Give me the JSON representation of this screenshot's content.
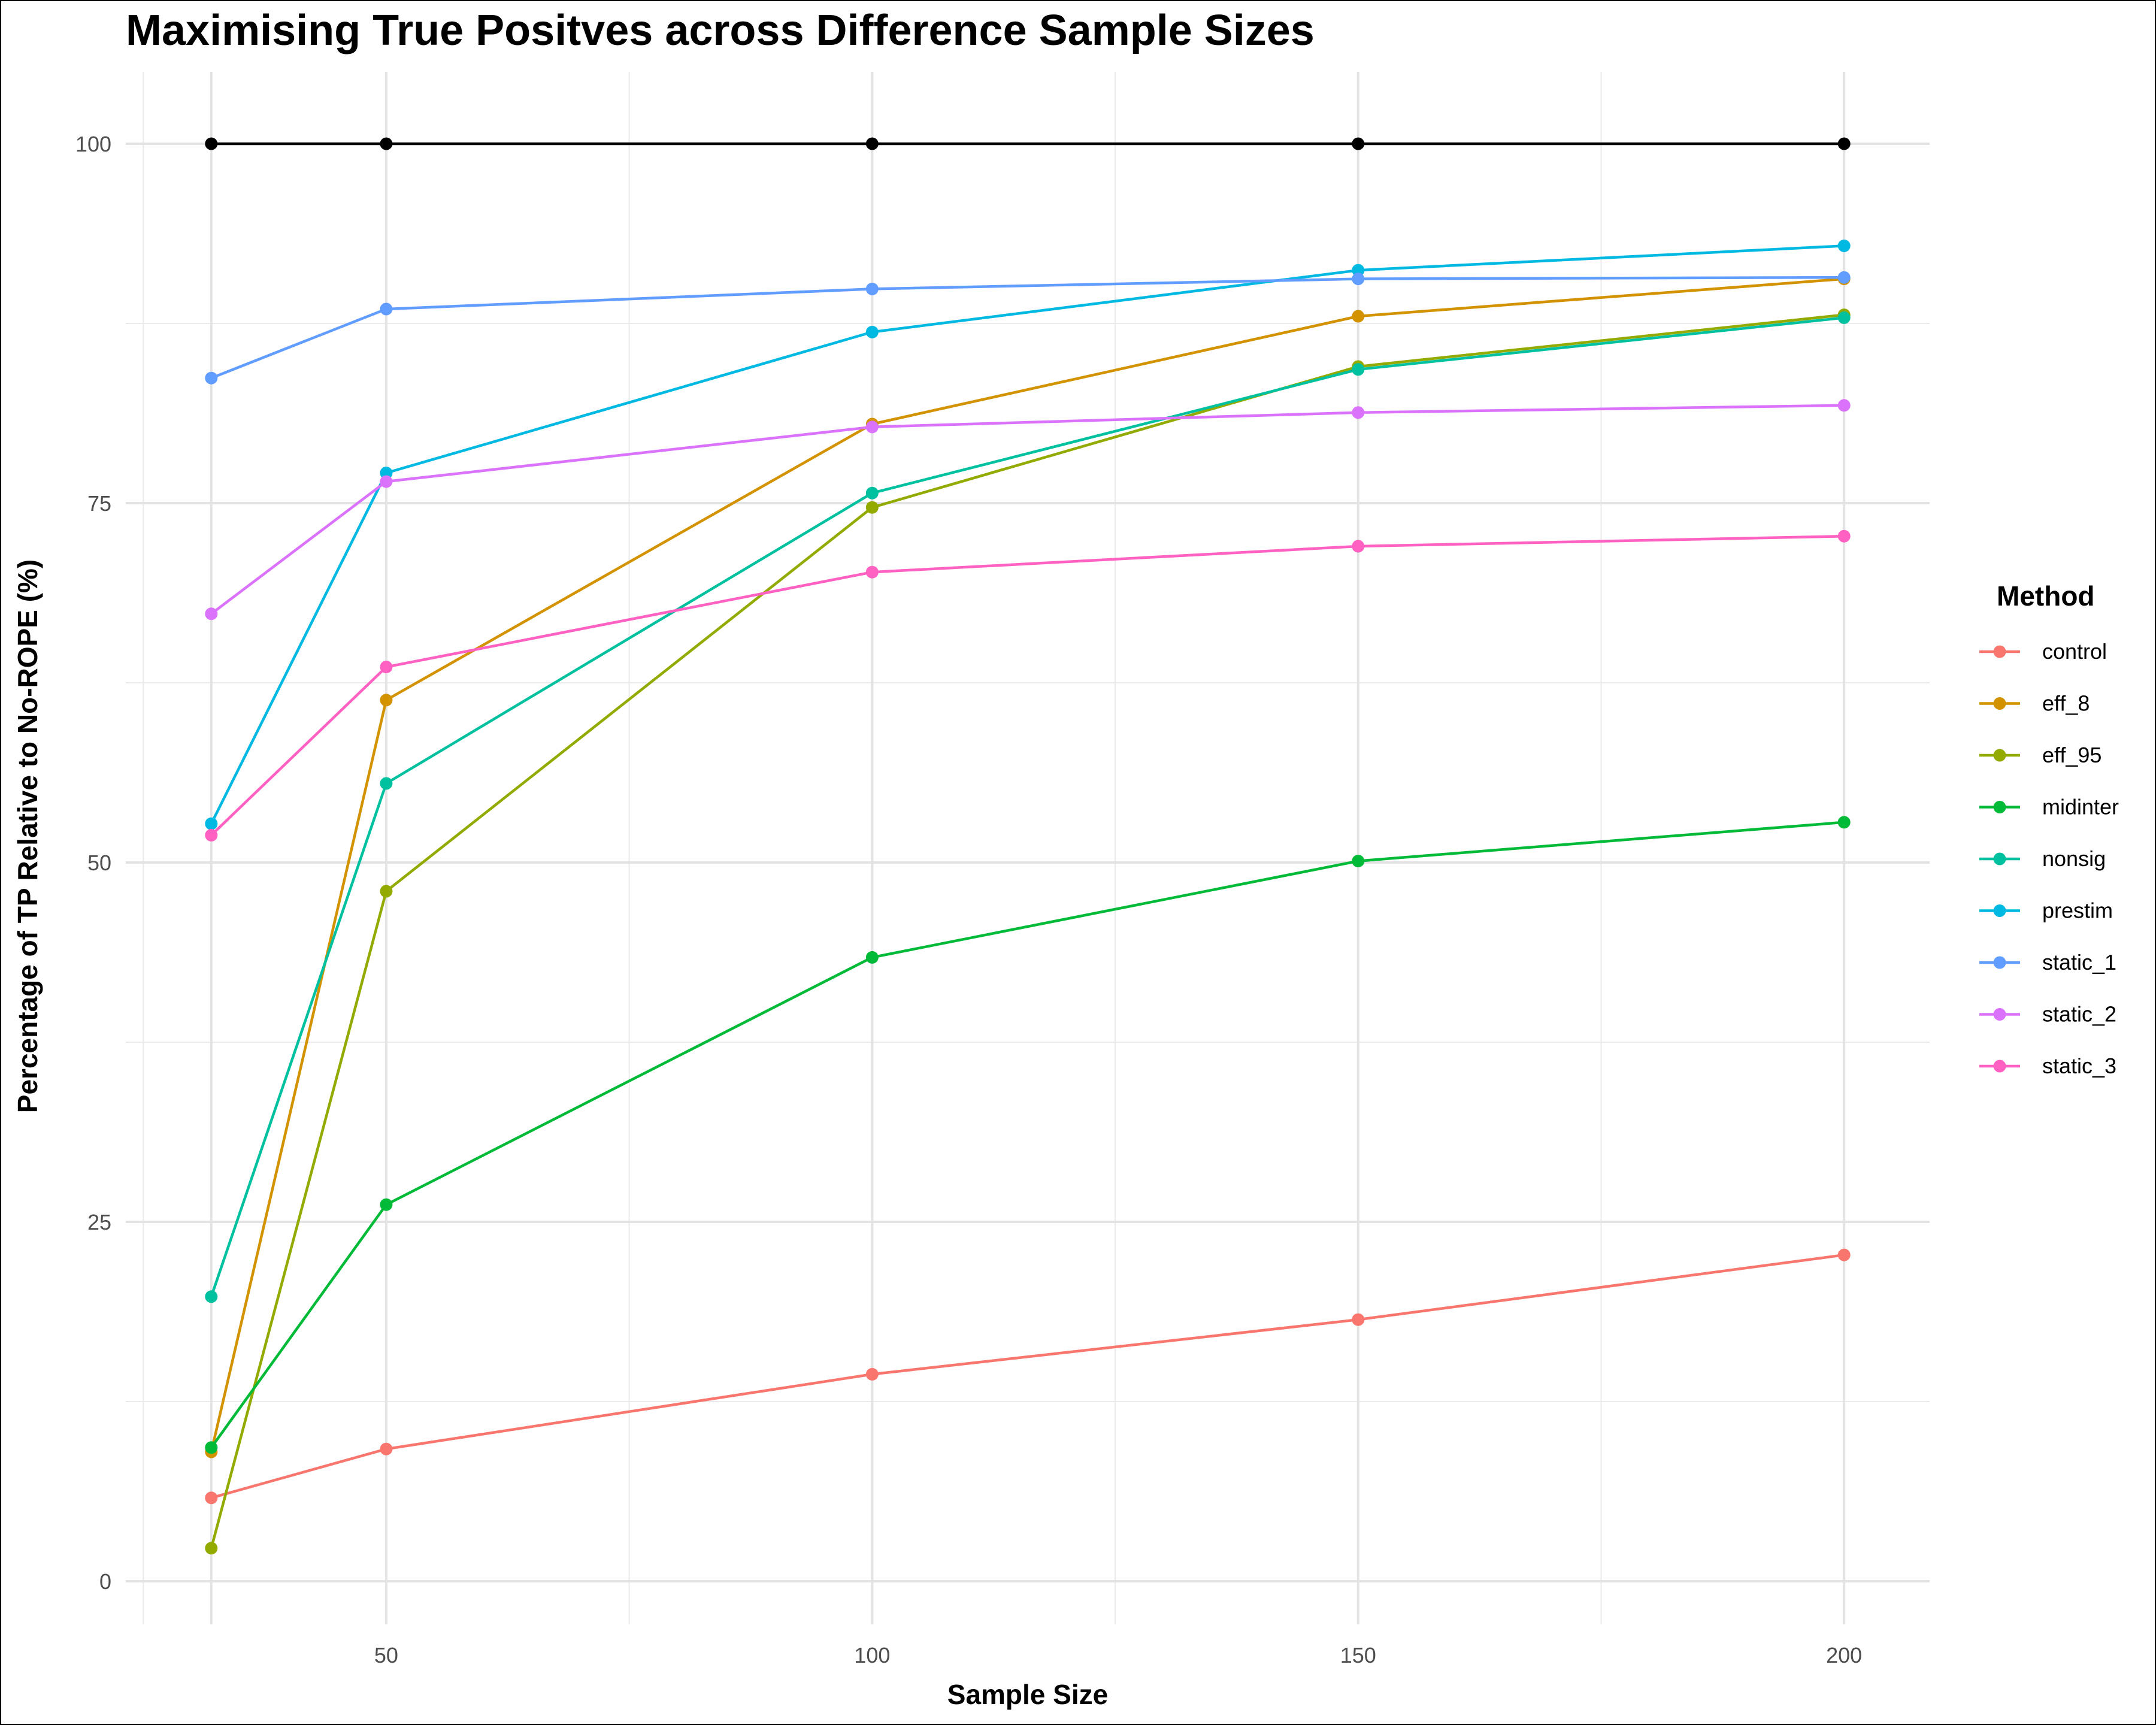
{
  "chart_data": {
    "type": "line",
    "title": "Maximising True Positves across Difference Sample Sizes",
    "xlabel": "Sample Size",
    "ylabel": "Percentage of TP Relative to No-ROPE (%)",
    "x": [
      32,
      50,
      100,
      150,
      200
    ],
    "xlim": [
      23.2,
      208.8
    ],
    "ylim": [
      -3,
      105
    ],
    "x_ticks": [
      50,
      100,
      150,
      200
    ],
    "x_tick_labels": [
      "50",
      "100",
      "150",
      "200"
    ],
    "x_minor": [
      25,
      75,
      125,
      175
    ],
    "y_ticks": [
      0,
      25,
      50,
      75,
      100
    ],
    "y_tick_labels": [
      "0",
      "25",
      "50",
      "75",
      "100"
    ],
    "y_minor": [
      12.5,
      37.5,
      62.5,
      87.5
    ],
    "grid": true,
    "legend": {
      "title": "Method",
      "position": "right"
    },
    "reference_series": {
      "values": [
        100,
        100,
        100,
        100,
        100
      ],
      "color": "#000000"
    },
    "series": [
      {
        "name": "control",
        "color": "#F8766D",
        "values": [
          5.8,
          9.2,
          14.4,
          18.2,
          22.7
        ]
      },
      {
        "name": "eff_8",
        "color": "#D39200",
        "values": [
          9.0,
          61.3,
          80.5,
          88.0,
          90.6
        ]
      },
      {
        "name": "eff_95",
        "color": "#93AA00",
        "values": [
          2.3,
          48.0,
          74.7,
          84.5,
          88.1
        ]
      },
      {
        "name": "midinter",
        "color": "#00BA38",
        "values": [
          9.3,
          26.2,
          43.4,
          50.1,
          52.8
        ]
      },
      {
        "name": "nonsig",
        "color": "#00C19F",
        "values": [
          19.8,
          55.5,
          75.7,
          84.3,
          87.9
        ]
      },
      {
        "name": "prestim",
        "color": "#00B9E3",
        "values": [
          52.7,
          77.1,
          86.9,
          91.2,
          92.9
        ]
      },
      {
        "name": "static_1",
        "color": "#619CFF",
        "values": [
          83.7,
          88.5,
          89.9,
          90.6,
          90.7
        ]
      },
      {
        "name": "static_2",
        "color": "#DB72FB",
        "values": [
          67.3,
          76.5,
          80.3,
          81.3,
          81.8
        ]
      },
      {
        "name": "static_3",
        "color": "#FF61C3",
        "values": [
          51.9,
          63.6,
          70.2,
          72.0,
          72.7
        ]
      }
    ]
  }
}
